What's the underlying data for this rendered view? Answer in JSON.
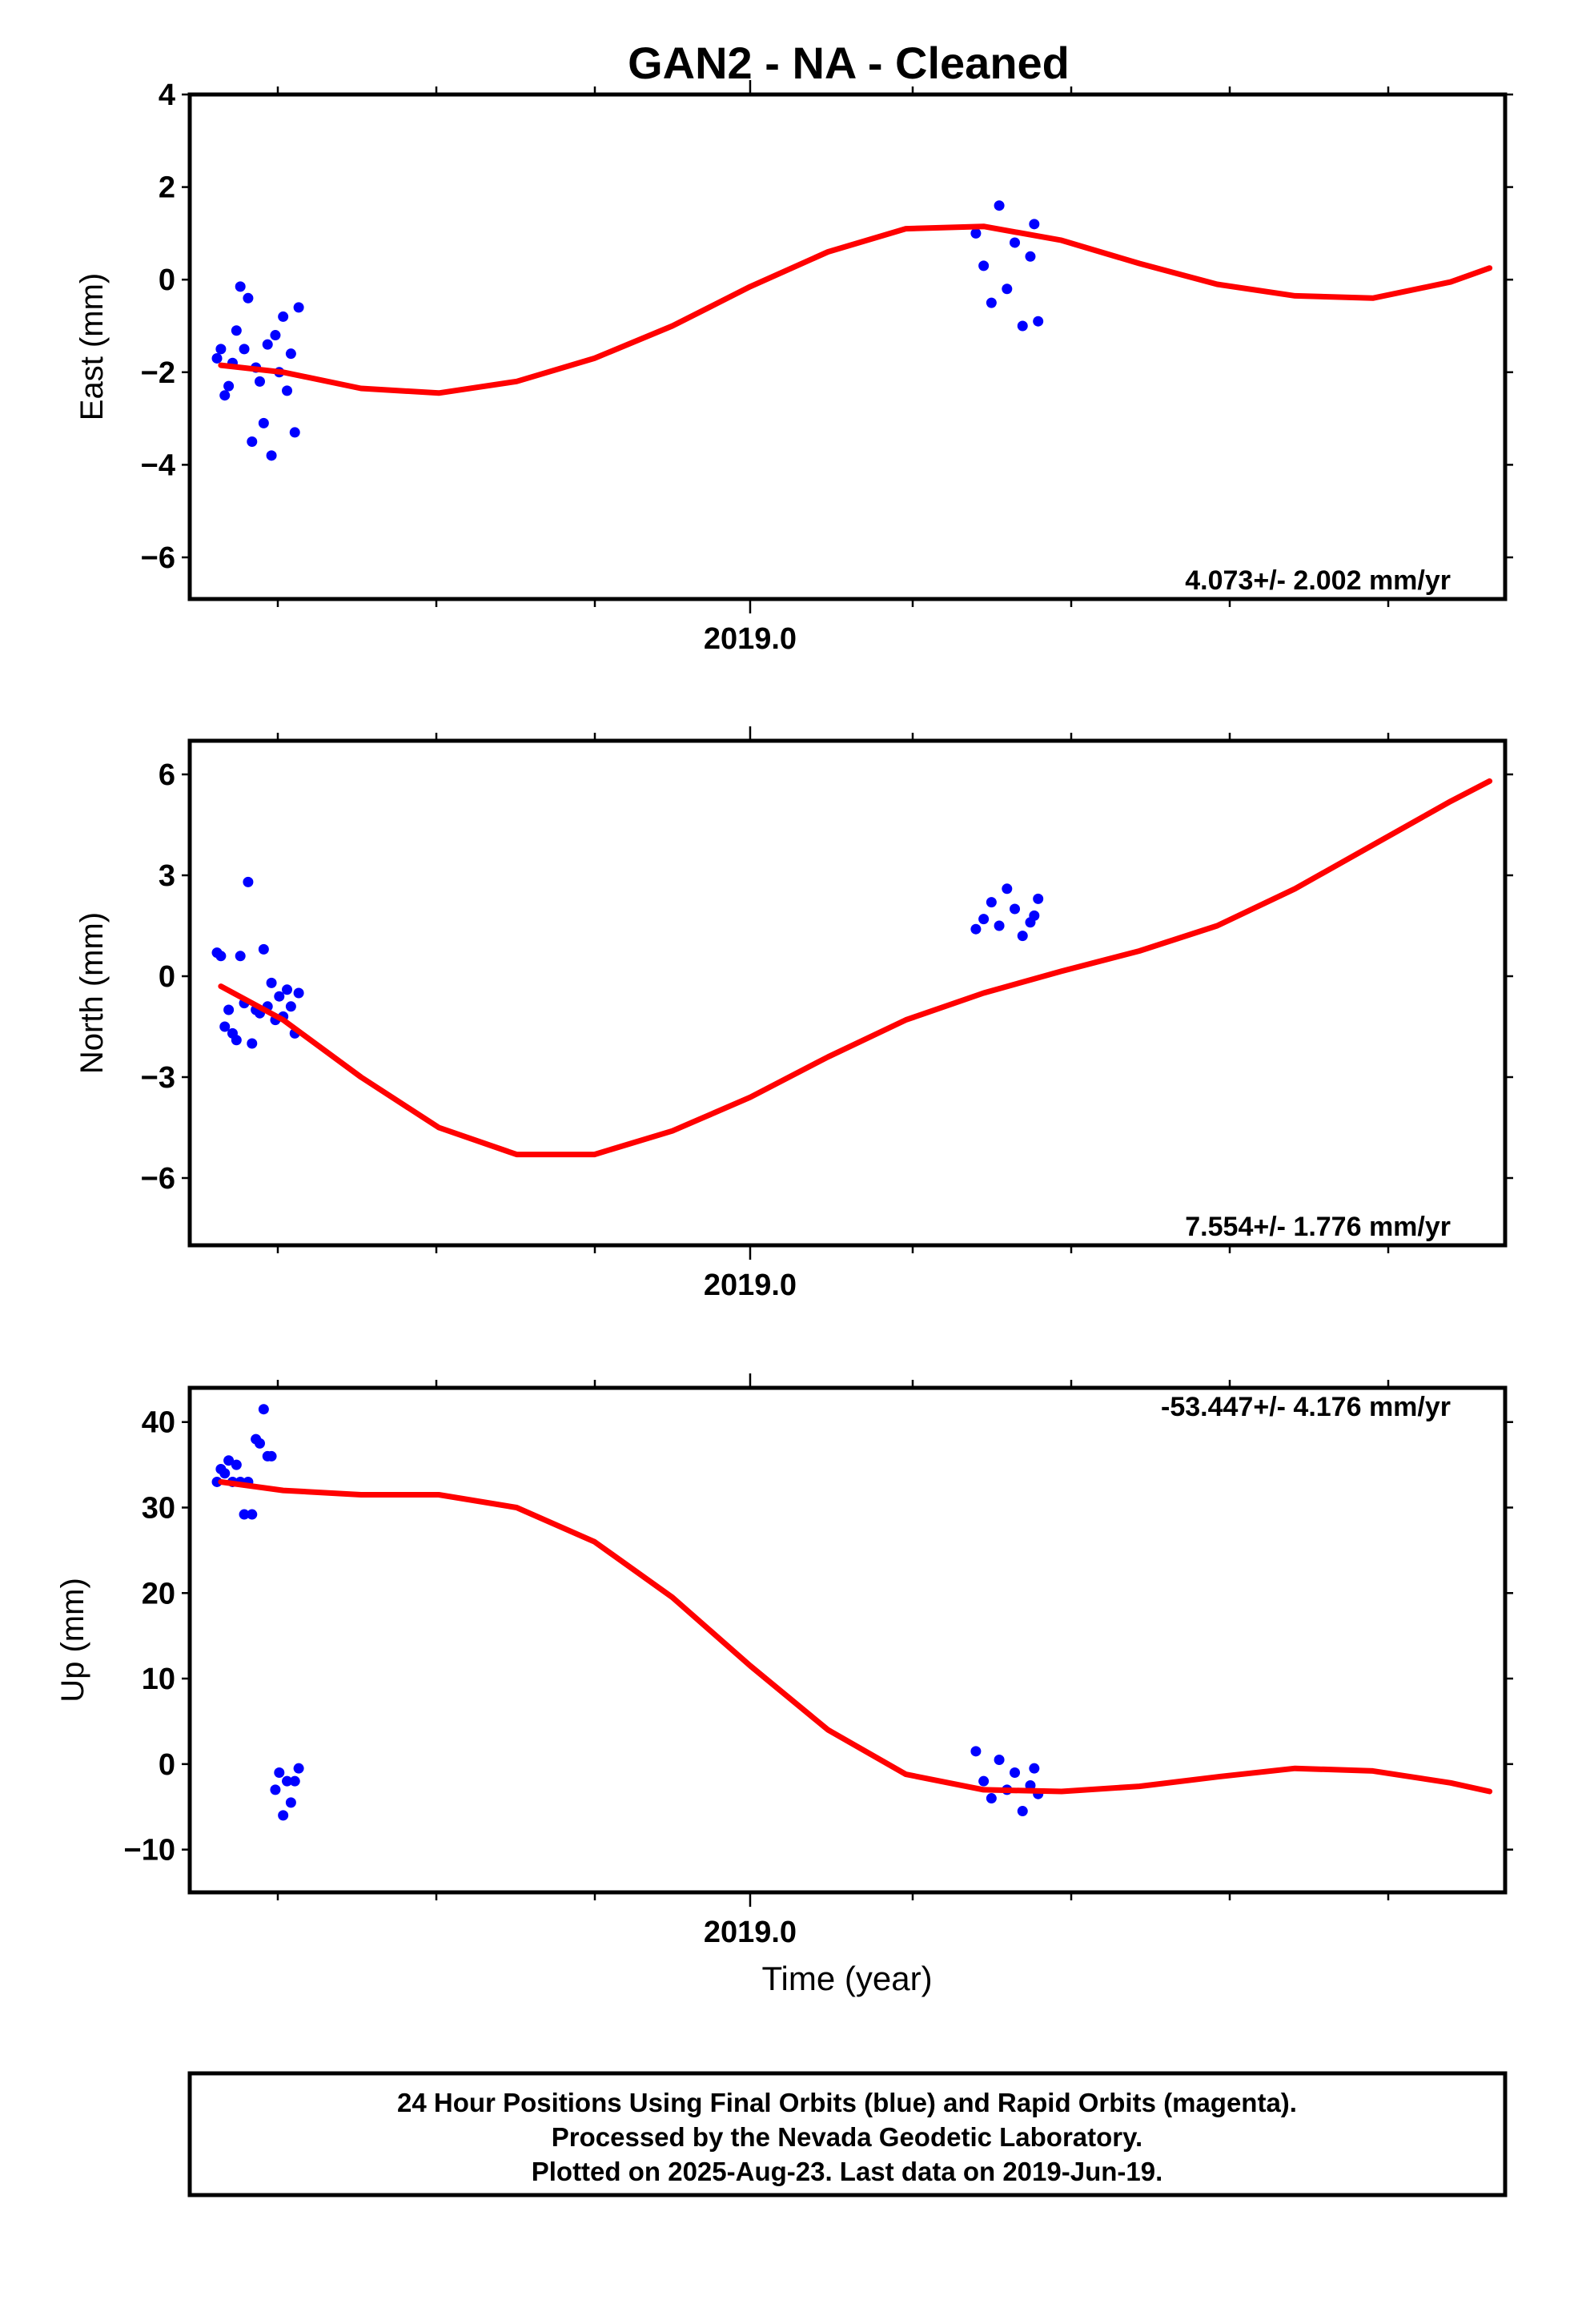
{
  "title": "GAN2  - NA - Cleaned",
  "xlabel": "Time (year)",
  "caption": [
    "24 Hour Positions Using Final Orbits (blue) and Rapid Orbits (magenta).",
    "Processed by the Nevada Geodetic Laboratory.",
    "Plotted on 2025-Aug-23. Last data on 2019-Jun-19."
  ],
  "colors": {
    "data": "#0000ff",
    "fit": "#ff0000",
    "frame": "#000000"
  },
  "chart_data": [
    {
      "type": "scatter",
      "ylabel": "East (mm)",
      "rate_label": "4.073+/- 2.002 mm/yr",
      "rate_position": "bottom-right",
      "xlim": [
        2018.28,
        2019.97
      ],
      "ylim": [
        -6.9,
        4.0
      ],
      "yticks": [
        4,
        2,
        0,
        -2,
        -4,
        -6
      ],
      "yticklabels": [
        "4",
        "2",
        "0",
        "−2",
        "−4",
        "−6"
      ],
      "xtick_labels": [
        {
          "value": 2019.0,
          "label": "2019.0"
        }
      ],
      "x": [
        2018.315,
        2018.32,
        2018.325,
        2018.33,
        2018.335,
        2018.34,
        2018.345,
        2018.35,
        2018.355,
        2018.36,
        2018.365,
        2018.37,
        2018.375,
        2018.38,
        2018.385,
        2018.39,
        2018.395,
        2018.4,
        2018.405,
        2018.41,
        2018.415,
        2018.42,
        2019.29,
        2019.3,
        2019.31,
        2019.32,
        2019.33,
        2019.34,
        2019.35,
        2019.36,
        2019.365,
        2019.37
      ],
      "y": [
        -1.7,
        -1.5,
        -2.5,
        -2.3,
        -1.8,
        -1.1,
        -0.15,
        -1.5,
        -0.4,
        -3.5,
        -1.9,
        -2.2,
        -3.1,
        -1.4,
        -3.8,
        -1.2,
        -2.0,
        -0.8,
        -2.4,
        -1.6,
        -3.3,
        -0.6,
        1.0,
        0.3,
        -0.5,
        1.6,
        -0.2,
        0.8,
        -1.0,
        0.5,
        1.2,
        -0.9
      ],
      "fit": {
        "x": [
          2018.32,
          2018.4,
          2018.5,
          2018.6,
          2018.7,
          2018.8,
          2018.9,
          2019.0,
          2019.1,
          2019.2,
          2019.3,
          2019.4,
          2019.5,
          2019.6,
          2019.7,
          2019.8,
          2019.9,
          2019.95
        ],
        "y": [
          -1.85,
          -2.0,
          -2.35,
          -2.45,
          -2.2,
          -1.7,
          -1.0,
          -0.15,
          0.6,
          1.1,
          1.15,
          0.85,
          0.35,
          -0.1,
          -0.35,
          -0.4,
          -0.05,
          0.25
        ]
      }
    },
    {
      "type": "scatter",
      "ylabel": "North (mm)",
      "rate_label": "7.554+/- 1.776 mm/yr",
      "rate_position": "bottom-right",
      "xlim": [
        2018.28,
        2019.97
      ],
      "ylim": [
        -8.0,
        7.0
      ],
      "yticks": [
        6,
        3,
        0,
        -3,
        -6
      ],
      "yticklabels": [
        "6",
        "3",
        "0",
        "−3",
        "−6"
      ],
      "xtick_labels": [
        {
          "value": 2019.0,
          "label": "2019.0"
        }
      ],
      "x": [
        2018.315,
        2018.32,
        2018.325,
        2018.33,
        2018.335,
        2018.34,
        2018.345,
        2018.35,
        2018.355,
        2018.36,
        2018.365,
        2018.37,
        2018.375,
        2018.38,
        2018.385,
        2018.39,
        2018.395,
        2018.4,
        2018.405,
        2018.41,
        2018.415,
        2018.42,
        2019.29,
        2019.3,
        2019.31,
        2019.32,
        2019.33,
        2019.34,
        2019.35,
        2019.36,
        2019.365,
        2019.37
      ],
      "y": [
        0.7,
        0.6,
        -1.5,
        -1.0,
        -1.7,
        -1.9,
        0.6,
        -0.8,
        2.8,
        -2.0,
        -1.0,
        -1.1,
        0.8,
        -0.9,
        -0.2,
        -1.3,
        -0.6,
        -1.2,
        -0.4,
        -0.9,
        -1.7,
        -0.5,
        1.4,
        1.7,
        2.2,
        1.5,
        2.6,
        2.0,
        1.2,
        1.6,
        1.8,
        2.3
      ],
      "fit": {
        "x": [
          2018.32,
          2018.4,
          2018.5,
          2018.6,
          2018.7,
          2018.8,
          2018.9,
          2019.0,
          2019.1,
          2019.2,
          2019.3,
          2019.4,
          2019.5,
          2019.6,
          2019.7,
          2019.8,
          2019.9,
          2019.95
        ],
        "y": [
          -0.3,
          -1.3,
          -3.0,
          -4.5,
          -5.3,
          -5.3,
          -4.6,
          -3.6,
          -2.4,
          -1.3,
          -0.5,
          0.15,
          0.75,
          1.5,
          2.6,
          3.9,
          5.2,
          5.8
        ]
      }
    },
    {
      "type": "scatter",
      "ylabel": "Up (mm)",
      "rate_label": "-53.447+/- 4.176 mm/yr",
      "rate_position": "top-right",
      "xlim": [
        2018.28,
        2019.97
      ],
      "ylim": [
        -15.0,
        44.0
      ],
      "yticks": [
        40,
        30,
        20,
        10,
        0,
        -10
      ],
      "yticklabels": [
        "40",
        "30",
        "20",
        "10",
        "0",
        "−10"
      ],
      "xtick_labels": [
        {
          "value": 2019.0,
          "label": "2019.0"
        }
      ],
      "x": [
        2018.315,
        2018.32,
        2018.325,
        2018.33,
        2018.335,
        2018.34,
        2018.345,
        2018.35,
        2018.355,
        2018.36,
        2018.365,
        2018.37,
        2018.375,
        2018.38,
        2018.385,
        2018.39,
        2018.395,
        2018.4,
        2018.405,
        2018.41,
        2018.415,
        2018.42,
        2019.29,
        2019.3,
        2019.31,
        2019.32,
        2019.33,
        2019.34,
        2019.35,
        2019.36,
        2019.365,
        2019.37
      ],
      "y": [
        33.0,
        34.5,
        34.0,
        35.5,
        33.0,
        35.0,
        33.0,
        29.2,
        33.0,
        29.2,
        38.0,
        37.5,
        41.5,
        36.0,
        36.0,
        -3.0,
        -1.0,
        -6.0,
        -2.0,
        -4.5,
        -2.0,
        -0.5,
        1.5,
        -2.0,
        -4.0,
        0.5,
        -3.0,
        -1.0,
        -5.5,
        -2.5,
        -0.5,
        -3.5
      ],
      "fit": {
        "x": [
          2018.32,
          2018.4,
          2018.5,
          2018.6,
          2018.7,
          2018.8,
          2018.9,
          2019.0,
          2019.1,
          2019.2,
          2019.3,
          2019.4,
          2019.5,
          2019.6,
          2019.7,
          2019.8,
          2019.9,
          2019.95
        ],
        "y": [
          33.0,
          32.0,
          31.5,
          31.5,
          30.0,
          26.0,
          19.5,
          11.5,
          4.0,
          -1.2,
          -3.0,
          -3.2,
          -2.6,
          -1.5,
          -0.5,
          -0.8,
          -2.2,
          -3.2
        ]
      }
    }
  ]
}
